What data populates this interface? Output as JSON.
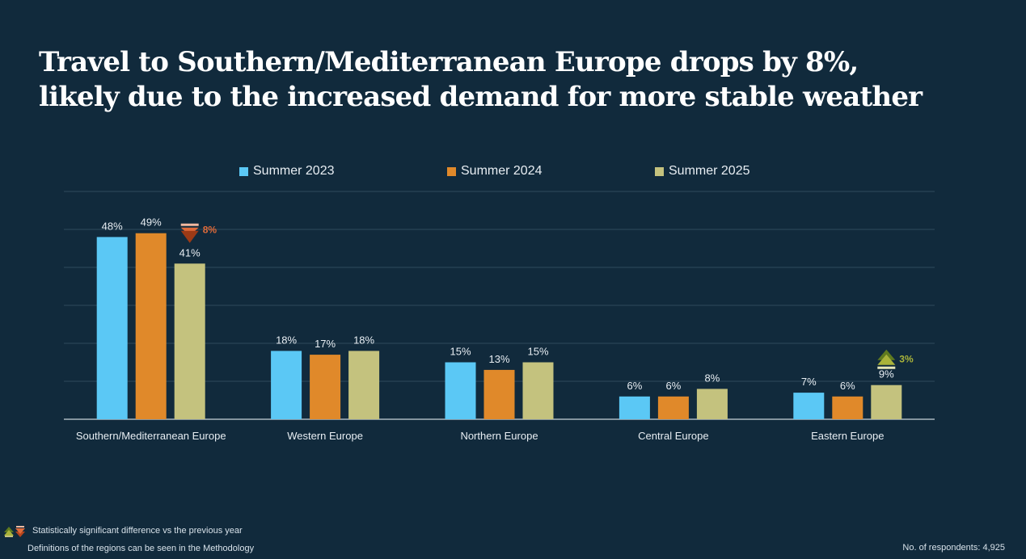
{
  "page": {
    "title_line1": "Travel to Southern/Mediterranean Europe drops by 8%,",
    "title_line2": "likely due to the increased demand for more stable weather",
    "footnote_significance": "Statistically significant difference vs the previous year",
    "footnote_definitions": "Definitions of the regions can be seen in  the Methodology",
    "respondents": "No. of respondents: 4,925"
  },
  "chart_data": {
    "type": "bar",
    "title": "",
    "xlabel": "",
    "ylabel": "",
    "ylim": [
      0,
      60
    ],
    "grid": true,
    "legend_position": "top",
    "categories": [
      "Southern/Mediterranean Europe",
      "Western Europe",
      "Northern Europe",
      "Central Europe",
      "Eastern Europe"
    ],
    "series": [
      {
        "name": "Summer 2023",
        "color": "#5bc8f5",
        "values": [
          48,
          18,
          15,
          6,
          7
        ],
        "labels": [
          "48%",
          "18%",
          "15%",
          "6%",
          "7%"
        ]
      },
      {
        "name": "Summer 2024",
        "color": "#e0892a",
        "values": [
          49,
          17,
          13,
          6,
          6
        ],
        "labels": [
          "49%",
          "17%",
          "13%",
          "6%",
          "6%"
        ]
      },
      {
        "name": "Summer 2025",
        "color": "#c4c27e",
        "values": [
          41,
          18,
          15,
          8,
          9
        ],
        "labels": [
          "41%",
          "18%",
          "15%",
          "8%",
          "9%"
        ]
      }
    ],
    "annotations": [
      {
        "category_index": 0,
        "direction": "down",
        "text": "8%",
        "color": "#e06b3a"
      },
      {
        "category_index": 4,
        "direction": "up",
        "text": "3%",
        "color": "#a9b33a"
      }
    ]
  }
}
